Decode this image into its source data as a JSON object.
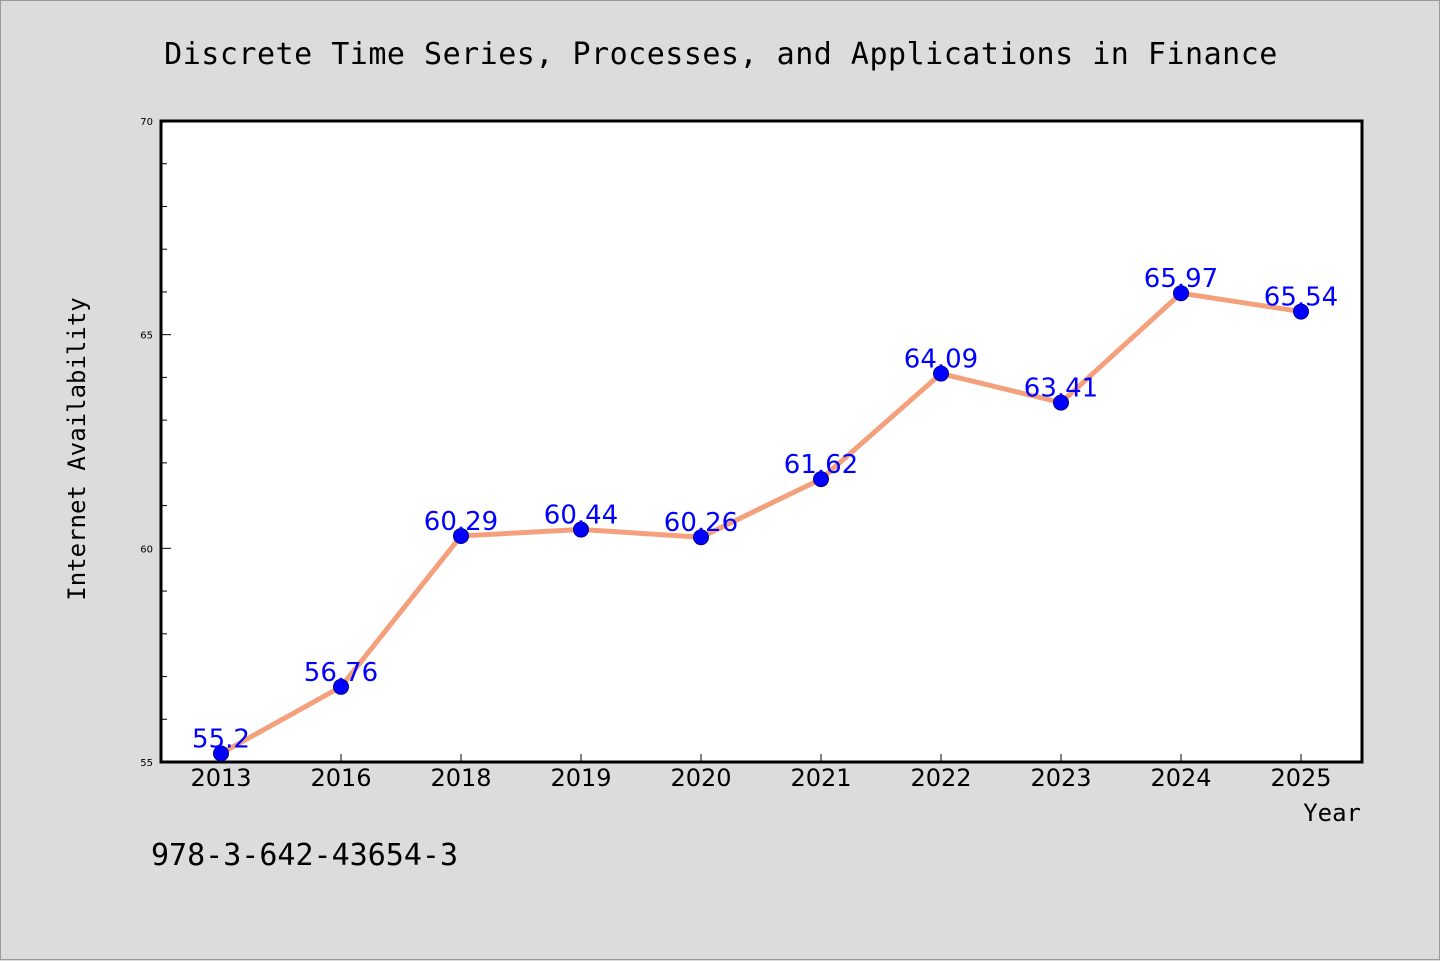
{
  "colors": {
    "background": "#dcdcdc",
    "plot_background": "#ffffff",
    "line": "#f4a07c",
    "marker": "#0000ff",
    "data_label": "#0000ff",
    "axis": "#000000"
  },
  "note": "978-3-642-43654-3",
  "chart_data": {
    "type": "line",
    "title": "Discrete Time Series, Processes, and Applications in Finance",
    "xlabel": "Year",
    "ylabel": "Internet Availability",
    "categories": [
      "2013",
      "2016",
      "2018",
      "2019",
      "2020",
      "2021",
      "2022",
      "2023",
      "2024",
      "2025"
    ],
    "series": [
      {
        "values": [
          55.2,
          56.76,
          60.29,
          60.44,
          60.26,
          61.62,
          64.09,
          63.41,
          65.97,
          65.54
        ],
        "labels": [
          "55.2",
          "56.76",
          "60.29",
          "60.44",
          "60.26",
          "61.62",
          "64.09",
          "63.41",
          "65.97",
          "65.54"
        ]
      }
    ],
    "ylim": [
      55,
      70
    ],
    "y_major_ticks": [
      55,
      60,
      65,
      70
    ],
    "y_minor_step": 1,
    "grid": false,
    "markers": "circle",
    "legend": "none"
  }
}
